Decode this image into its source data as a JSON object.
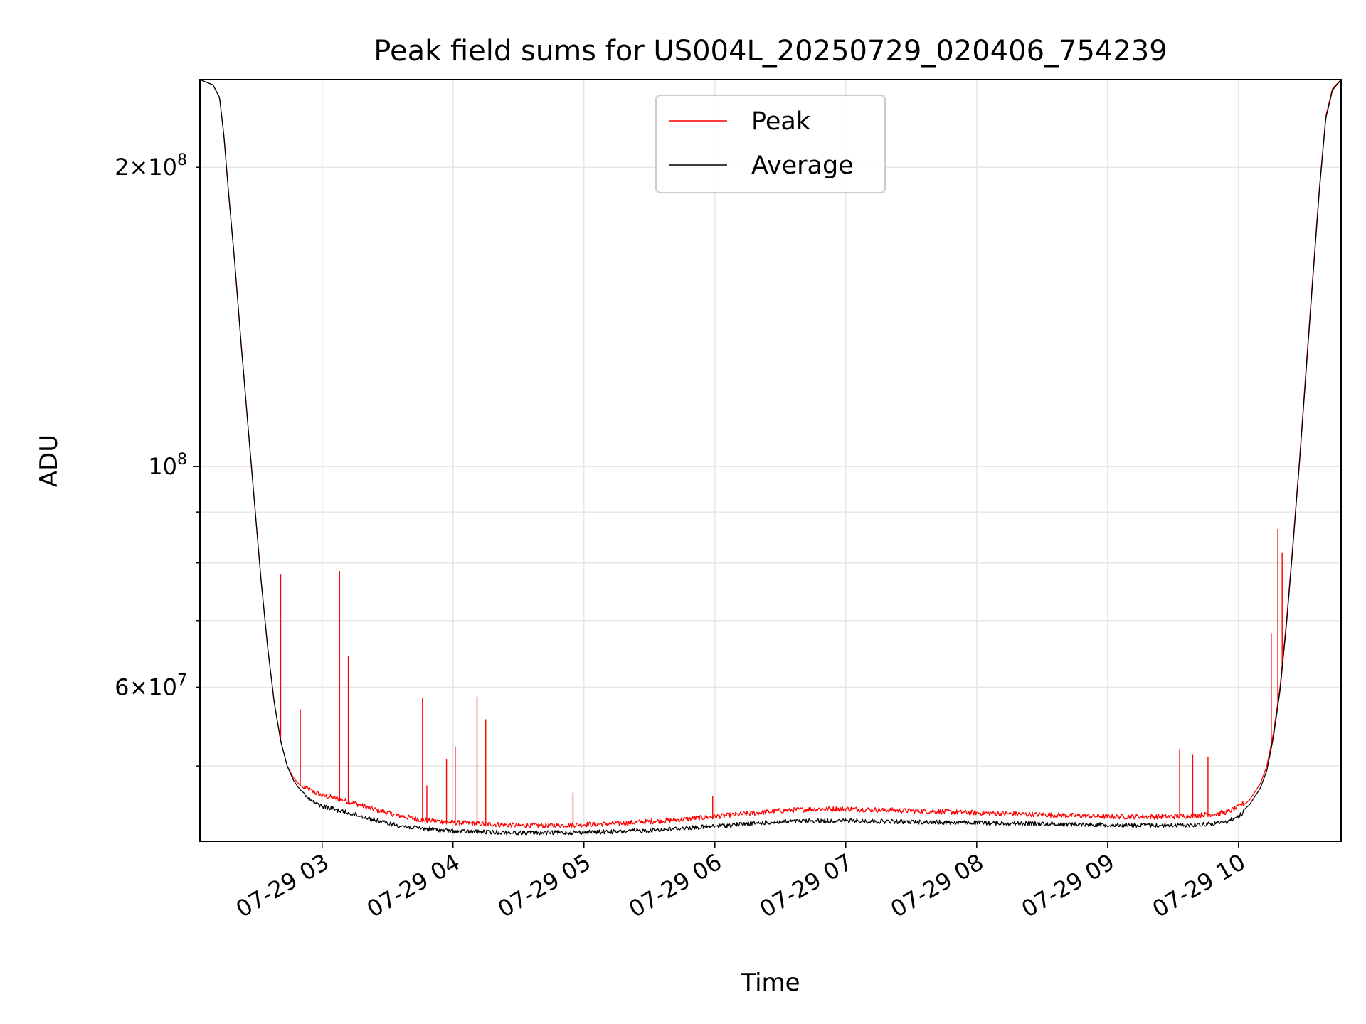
{
  "chart_data": {
    "type": "line",
    "title": "Peak field sums for US004L_20250729_020406_754239",
    "xlabel": "Time",
    "ylabel": "ADU",
    "yscale": "log",
    "ylim": [
      42000000,
      245000000
    ],
    "xlim": [
      "07-29 02:04",
      "07-29 10:47"
    ],
    "grid": true,
    "legend_position": "top-center",
    "x_ticks": [
      "07-29 03",
      "07-29 04",
      "07-29 05",
      "07-29 06",
      "07-29 07",
      "07-29 08",
      "07-29 09",
      "07-29 10"
    ],
    "y_major_ticks": [
      {
        "value": 100000000,
        "mantissa": "",
        "base": "10",
        "exponent": "8"
      }
    ],
    "y_labeled_minor_ticks": [
      {
        "value": 200000000,
        "mantissa": "2",
        "base": "10",
        "exponent": "8"
      },
      {
        "value": 60000000,
        "mantissa": "6",
        "base": "10",
        "exponent": "7"
      }
    ],
    "y_minor_ticks": [
      50000000,
      70000000,
      80000000,
      90000000
    ],
    "series": [
      {
        "name": "Peak",
        "color": "#ff0000",
        "x": [
          "07-29 02:04",
          "07-29 02:10",
          "07-29 02:13",
          "07-29 02:15",
          "07-29 02:17",
          "07-29 02:20",
          "07-29 02:23",
          "07-29 02:26",
          "07-29 02:29",
          "07-29 02:32",
          "07-29 02:35",
          "07-29 02:38",
          "07-29 02:41",
          "07-29 02:44",
          "07-29 02:47",
          "07-29 02:50",
          "07-29 02:53",
          "07-29 02:56",
          "07-29 03:00",
          "07-29 03:05",
          "07-29 03:10",
          "07-29 03:15",
          "07-29 03:20",
          "07-29 03:25",
          "07-29 03:30",
          "07-29 03:35",
          "07-29 03:40",
          "07-29 03:45",
          "07-29 03:50",
          "07-29 03:55",
          "07-29 04:00",
          "07-29 04:10",
          "07-29 04:20",
          "07-29 04:30",
          "07-29 04:45",
          "07-29 05:00",
          "07-29 05:15",
          "07-29 05:30",
          "07-29 05:45",
          "07-29 06:00",
          "07-29 06:15",
          "07-29 06:30",
          "07-29 06:45",
          "07-29 07:00",
          "07-29 07:15",
          "07-29 07:30",
          "07-29 07:45",
          "07-29 08:00",
          "07-29 08:15",
          "07-29 08:30",
          "07-29 08:45",
          "07-29 09:00",
          "07-29 09:15",
          "07-29 09:30",
          "07-29 09:40",
          "07-29 09:50",
          "07-29 09:55",
          "07-29 10:00",
          "07-29 10:05",
          "07-29 10:10",
          "07-29 10:13",
          "07-29 10:16",
          "07-29 10:19",
          "07-29 10:22",
          "07-29 10:25",
          "07-29 10:28",
          "07-29 10:31",
          "07-29 10:34",
          "07-29 10:37",
          "07-29 10:40",
          "07-29 10:43",
          "07-29 10:47"
        ],
        "y": [
          245000000,
          242000000,
          235000000,
          215000000,
          190000000,
          160000000,
          132000000,
          110000000,
          92000000,
          77000000,
          66000000,
          58000000,
          53000000,
          50000000,
          48600000,
          47800000,
          47200000,
          46800000,
          46400000,
          46200000,
          45900000,
          45600000,
          45200000,
          44900000,
          44600000,
          44300000,
          44100000,
          43900000,
          43800000,
          43700000,
          43600000,
          43500000,
          43400000,
          43300000,
          43300000,
          43400000,
          43500000,
          43700000,
          43900000,
          44200000,
          44500000,
          44800000,
          45000000,
          45000000,
          44900000,
          44800000,
          44700000,
          44600000,
          44500000,
          44400000,
          44300000,
          44200000,
          44200000,
          44200000,
          44300000,
          44500000,
          44700000,
          45200000,
          46200000,
          48000000,
          50000000,
          54000000,
          60000000,
          70000000,
          84000000,
          102000000,
          126000000,
          155000000,
          190000000,
          225000000,
          240000000,
          245000000
        ],
        "spikes": [
          {
            "x": "07-29 02:41",
            "y": 78000000
          },
          {
            "x": "07-29 02:50",
            "y": 57000000
          },
          {
            "x": "07-29 03:08",
            "y": 78500000
          },
          {
            "x": "07-29 03:12",
            "y": 64500000
          },
          {
            "x": "07-29 03:46",
            "y": 58500000
          },
          {
            "x": "07-29 03:48",
            "y": 47800000
          },
          {
            "x": "07-29 03:57",
            "y": 50800000
          },
          {
            "x": "07-29 04:01",
            "y": 52300000
          },
          {
            "x": "07-29 04:11",
            "y": 58700000
          },
          {
            "x": "07-29 04:15",
            "y": 55700000
          },
          {
            "x": "07-29 04:55",
            "y": 47000000
          },
          {
            "x": "07-29 05:59",
            "y": 46600000
          },
          {
            "x": "07-29 09:33",
            "y": 52000000
          },
          {
            "x": "07-29 09:39",
            "y": 51300000
          },
          {
            "x": "07-29 09:46",
            "y": 51100000
          },
          {
            "x": "07-29 10:15",
            "y": 68000000
          },
          {
            "x": "07-29 10:18",
            "y": 86500000
          },
          {
            "x": "07-29 10:20",
            "y": 82000000
          }
        ]
      },
      {
        "name": "Average",
        "color": "#000000",
        "x": [
          "07-29 02:04",
          "07-29 02:10",
          "07-29 02:13",
          "07-29 02:15",
          "07-29 02:17",
          "07-29 02:20",
          "07-29 02:23",
          "07-29 02:26",
          "07-29 02:29",
          "07-29 02:32",
          "07-29 02:35",
          "07-29 02:38",
          "07-29 02:41",
          "07-29 02:44",
          "07-29 02:47",
          "07-29 02:50",
          "07-29 02:53",
          "07-29 02:56",
          "07-29 03:00",
          "07-29 03:05",
          "07-29 03:10",
          "07-29 03:15",
          "07-29 03:20",
          "07-29 03:25",
          "07-29 03:30",
          "07-29 03:35",
          "07-29 03:40",
          "07-29 03:45",
          "07-29 03:50",
          "07-29 03:55",
          "07-29 04:00",
          "07-29 04:10",
          "07-29 04:20",
          "07-29 04:30",
          "07-29 04:45",
          "07-29 05:00",
          "07-29 05:15",
          "07-29 05:30",
          "07-29 05:45",
          "07-29 06:00",
          "07-29 06:15",
          "07-29 06:30",
          "07-29 06:45",
          "07-29 07:00",
          "07-29 07:15",
          "07-29 07:30",
          "07-29 07:45",
          "07-29 08:00",
          "07-29 08:15",
          "07-29 08:30",
          "07-29 08:45",
          "07-29 09:00",
          "07-29 09:15",
          "07-29 09:30",
          "07-29 09:40",
          "07-29 09:50",
          "07-29 09:55",
          "07-29 10:00",
          "07-29 10:05",
          "07-29 10:10",
          "07-29 10:13",
          "07-29 10:16",
          "07-29 10:19",
          "07-29 10:22",
          "07-29 10:25",
          "07-29 10:28",
          "07-29 10:31",
          "07-29 10:34",
          "07-29 10:37",
          "07-29 10:40",
          "07-29 10:43",
          "07-29 10:47"
        ],
        "y": [
          245000000,
          242000000,
          235000000,
          215000000,
          190000000,
          160000000,
          132000000,
          110000000,
          92000000,
          77000000,
          66000000,
          58000000,
          53000000,
          50000000,
          48300000,
          47300000,
          46700000,
          46200000,
          45800000,
          45500000,
          45200000,
          44900000,
          44600000,
          44300000,
          44000000,
          43800000,
          43600000,
          43500000,
          43400000,
          43300000,
          43200000,
          43150000,
          43100000,
          43050000,
          43050000,
          43100000,
          43150000,
          43300000,
          43500000,
          43700000,
          43950000,
          44150000,
          44250000,
          44250000,
          44200000,
          44150000,
          44100000,
          44050000,
          44000000,
          43950000,
          43900000,
          43850000,
          43800000,
          43800000,
          43850000,
          44000000,
          44200000,
          44700000,
          45700000,
          47500000,
          49500000,
          53500000,
          59500000,
          69500000,
          83500000,
          101500000,
          125000000,
          154000000,
          189000000,
          224000000,
          239000000,
          245000000
        ]
      }
    ]
  }
}
